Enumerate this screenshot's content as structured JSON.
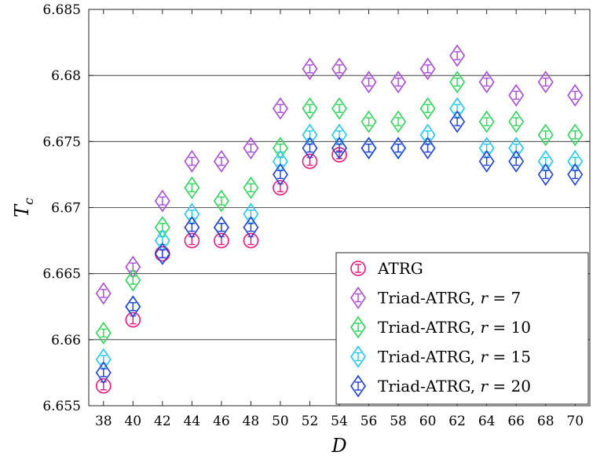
{
  "chart_data": {
    "type": "scatter",
    "xlabel": "D",
    "ylabel": "T_c",
    "ylabel_sub": "c",
    "ylabel_main": "T",
    "xlim": [
      37,
      71
    ],
    "ylim": [
      6.655,
      6.685
    ],
    "grid": "horizontal",
    "x_ticks": [
      38,
      40,
      42,
      44,
      46,
      48,
      50,
      52,
      54,
      56,
      58,
      60,
      62,
      64,
      66,
      68,
      70
    ],
    "x_tick_labels": [
      "38",
      "40",
      "42",
      "44",
      "46",
      "48",
      "50",
      "52",
      "54",
      "56",
      "58",
      "60",
      "62",
      "64",
      "66",
      "68",
      "70"
    ],
    "y_ticks": [
      6.655,
      6.66,
      6.665,
      6.67,
      6.675,
      6.68,
      6.685
    ],
    "y_tick_labels": [
      "6.655",
      "6.66",
      "6.665",
      "6.67",
      "6.675",
      "6.68",
      "6.685"
    ],
    "legend_position": "bottom-right",
    "series": [
      {
        "name": "ATRG",
        "label_suffix": "",
        "marker": "circle",
        "color": "#e8197a",
        "x": [
          38,
          40,
          42,
          44,
          46,
          48,
          50,
          52,
          54
        ],
        "y": [
          6.6565,
          6.6615,
          6.6665,
          6.6675,
          6.6675,
          6.6675,
          6.6715,
          6.6735,
          6.674
        ]
      },
      {
        "name": "Triad-ATRG, r = 7",
        "label_prefix": "Triad-ATRG, ",
        "label_var": "r",
        "label_value": "= 7",
        "marker": "diamond",
        "color": "#a64bd6",
        "x": [
          38,
          40,
          42,
          44,
          46,
          48,
          50,
          52,
          54,
          56,
          58,
          60,
          62,
          64,
          66,
          68,
          70
        ],
        "y": [
          6.6635,
          6.6655,
          6.6705,
          6.6735,
          6.6735,
          6.6745,
          6.6775,
          6.6805,
          6.6805,
          6.6795,
          6.6795,
          6.6805,
          6.6815,
          6.6795,
          6.6785,
          6.6795,
          6.6785
        ]
      },
      {
        "name": "Triad-ATRG, r = 10",
        "label_prefix": "Triad-ATRG, ",
        "label_var": "r",
        "label_value": "= 10",
        "marker": "diamond",
        "color": "#2fd35a",
        "x": [
          38,
          40,
          42,
          44,
          46,
          48,
          50,
          52,
          54,
          56,
          58,
          60,
          62,
          64,
          66,
          68,
          70
        ],
        "y": [
          6.6605,
          6.6645,
          6.6685,
          6.6715,
          6.6705,
          6.6715,
          6.6745,
          6.6775,
          6.6775,
          6.6765,
          6.6765,
          6.6775,
          6.6795,
          6.6765,
          6.6765,
          6.6755,
          6.6755
        ]
      },
      {
        "name": "Triad-ATRG, r = 15",
        "label_prefix": "Triad-ATRG, ",
        "label_var": "r",
        "label_value": "= 15",
        "marker": "diamond",
        "color": "#22c6ee",
        "x": [
          38,
          40,
          42,
          44,
          46,
          48,
          50,
          52,
          54,
          56,
          58,
          60,
          62,
          64,
          66,
          68,
          70
        ],
        "y": [
          6.6585,
          6.6625,
          6.6675,
          6.6695,
          6.6685,
          6.6695,
          6.6735,
          6.6755,
          6.6755,
          6.6745,
          6.6745,
          6.6755,
          6.6775,
          6.6745,
          6.6745,
          6.6735,
          6.6735
        ]
      },
      {
        "name": "Triad-ATRG, r = 20",
        "label_prefix": "Triad-ATRG, ",
        "label_var": "r",
        "label_value": "= 20",
        "marker": "diamond",
        "color": "#1f3fd8",
        "x": [
          38,
          40,
          42,
          44,
          46,
          48,
          50,
          52,
          54,
          56,
          58,
          60,
          62,
          64,
          66,
          68,
          70
        ],
        "y": [
          6.6575,
          6.6625,
          6.6665,
          6.6685,
          6.6685,
          6.6685,
          6.6725,
          6.6745,
          6.6745,
          6.6745,
          6.6745,
          6.6745,
          6.6765,
          6.6735,
          6.6735,
          6.6725,
          6.6725
        ]
      }
    ]
  }
}
